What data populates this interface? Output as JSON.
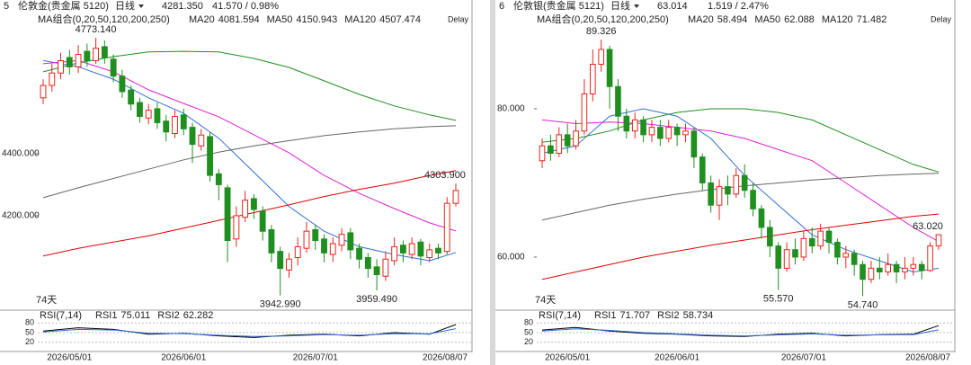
{
  "chart_data": [
    {
      "type": "candlestick",
      "index_label": "5",
      "title": "伦敦金(贵金属 5120)",
      "period": "日线",
      "price": "4281.350",
      "change": "41.570 / 0.98%",
      "ma_group": "MA组合(0,20,50,120,200,250)",
      "delay": "Delay",
      "days": "74天",
      "categories": [
        null,
        null,
        null,
        "2026/05/01",
        null,
        null,
        null,
        null,
        null,
        null,
        null,
        null,
        null,
        null,
        null,
        null,
        "2026/06/01",
        null,
        null,
        null,
        null,
        null,
        null,
        null,
        null,
        null,
        null,
        null,
        null,
        null,
        null,
        "2026/07/01",
        null,
        null,
        null,
        null,
        null,
        null,
        null,
        null,
        null,
        null,
        null,
        null,
        null,
        null,
        null,
        "2026/08/07"
      ],
      "ylim": [
        3910,
        4852
      ],
      "yticks": [
        {
          "value": 4200,
          "label": "4200.000"
        },
        {
          "value": 4400,
          "label": "4400.000"
        }
      ],
      "up_color": "#e8251c",
      "down_color": "#1f8f1f",
      "open": [
        4580,
        4620,
        4660,
        4710,
        4680,
        4730,
        4700,
        4745,
        4705,
        4650,
        4605,
        4565,
        4515,
        4545,
        4505,
        4465,
        4525,
        4485,
        4425,
        4455,
        4335,
        4290,
        4125,
        4195,
        4255,
        4215,
        4155,
        4085,
        4025,
        4065,
        4095,
        4155,
        4125,
        4075,
        4105,
        4145,
        4095,
        4065,
        4035,
        4005,
        4055,
        4105,
        4075,
        4115,
        4065,
        4095,
        4085,
        4240
      ],
      "high": [
        4640,
        4690,
        4725,
        4735,
        4750,
        4755,
        4773.14,
        4765,
        4720,
        4670,
        4620,
        4580,
        4560,
        4565,
        4525,
        4540,
        4545,
        4500,
        4480,
        4470,
        4350,
        4300,
        4230,
        4280,
        4270,
        4230,
        4170,
        4100,
        4080,
        4130,
        4180,
        4170,
        4140,
        4130,
        4160,
        4160,
        4110,
        4080,
        4060,
        4085,
        4130,
        4120,
        4130,
        4125,
        4110,
        4110,
        4260,
        4303.9
      ],
      "low": [
        4560,
        4600,
        4640,
        4655,
        4660,
        4680,
        4690,
        4690,
        4630,
        4580,
        4540,
        4500,
        4495,
        4480,
        4440,
        4450,
        4460,
        4370,
        4410,
        4310,
        4250,
        4050,
        4100,
        4180,
        4190,
        4120,
        4050,
        3942.99,
        4000,
        4040,
        4080,
        4090,
        4050,
        4050,
        4085,
        4060,
        4030,
        4000,
        3959.49,
        3990,
        4040,
        4050,
        4060,
        4040,
        4050,
        4060,
        4075,
        4230
      ],
      "close": [
        4620,
        4660,
        4700,
        4680,
        4720,
        4700,
        4740,
        4710,
        4650,
        4600,
        4560,
        4520,
        4540,
        4500,
        4470,
        4520,
        4480,
        4430,
        4460,
        4330,
        4300,
        4120,
        4200,
        4250,
        4220,
        4150,
        4080,
        4030,
        4060,
        4100,
        4150,
        4120,
        4080,
        4110,
        4140,
        4090,
        4060,
        4030,
        4010,
        4060,
        4100,
        4080,
        4110,
        4070,
        4090,
        4080,
        4240,
        4281.35
      ],
      "annotations": [
        {
          "label": "4773.140",
          "value": 4773.14,
          "color": "#e8251c"
        },
        {
          "label": "3942.990",
          "value": 3942.99,
          "color": "#1f6f1f"
        },
        {
          "label": "3959.490",
          "value": 3959.49,
          "color": "#1f6f1f"
        },
        {
          "label": "4303.900",
          "value": 4303.9,
          "color": "#e8251c"
        }
      ],
      "series": [
        {
          "name": "MA20",
          "value_label": "4081.594",
          "color": "#2f6fd6",
          "x": [
            0,
            4,
            8,
            12,
            16,
            20,
            24,
            28,
            32,
            36,
            40,
            44,
            47
          ],
          "values": [
            4700,
            4680,
            4640,
            4580,
            4530,
            4450,
            4340,
            4230,
            4150,
            4100,
            4075,
            4055,
            4081.594
          ]
        },
        {
          "name": "MA50",
          "value_label": "4150.943",
          "color": "#e020d0",
          "x": [
            0,
            4,
            8,
            12,
            16,
            20,
            24,
            28,
            32,
            36,
            40,
            44,
            47
          ],
          "values": [
            4690,
            4700,
            4664,
            4606,
            4562,
            4519,
            4461,
            4403,
            4330,
            4272,
            4223,
            4177,
            4150.943
          ]
        },
        {
          "name": "MA120",
          "value_label": "4507.474",
          "color": "#1f8f1f",
          "x": [
            0,
            4,
            8,
            12,
            16,
            20,
            24,
            28,
            32,
            36,
            40,
            44,
            47
          ],
          "values": [
            4664,
            4693,
            4713,
            4728,
            4730,
            4728,
            4707,
            4678,
            4635,
            4591,
            4554,
            4525,
            4507.474
          ]
        },
        {
          "color": "#e00000",
          "x": [
            0,
            4,
            8,
            12,
            16,
            20,
            24,
            28,
            32,
            36,
            40,
            44,
            47
          ],
          "values": [
            4070,
            4095,
            4115,
            4135,
            4160,
            4185,
            4210,
            4235,
            4262,
            4285,
            4305,
            4330,
            4345
          ]
        },
        {
          "color": "#666666",
          "x": [
            0,
            4,
            8,
            12,
            16,
            20,
            24,
            28,
            32,
            36,
            40,
            44,
            47
          ],
          "values": [
            4258,
            4290,
            4320,
            4350,
            4380,
            4405,
            4425,
            4442,
            4458,
            4470,
            4480,
            4487,
            4490
          ]
        }
      ],
      "rsi": {
        "title": "RSI(7,14)",
        "ylim": [
          0,
          100
        ],
        "yticks": [
          80,
          50,
          20
        ],
        "series": [
          {
            "name": "RSI1",
            "value_label": "75.011",
            "color": "#000000",
            "x": [
              0,
              4,
              8,
              12,
              16,
              20,
              24,
              28,
              32,
              36,
              40,
              44,
              47
            ],
            "values": [
              55,
              65,
              60,
              45,
              48,
              40,
              35,
              42,
              45,
              40,
              50,
              45,
              75.011
            ]
          },
          {
            "name": "RSI2",
            "value_label": "62.282",
            "color": "#2f6fd6",
            "x": [
              0,
              4,
              8,
              12,
              16,
              20,
              24,
              28,
              32,
              36,
              40,
              44,
              47
            ],
            "values": [
              52,
              60,
              58,
              48,
              47,
              42,
              38,
              40,
              44,
              42,
              47,
              46,
              62.282
            ]
          }
        ]
      }
    },
    {
      "type": "candlestick",
      "index_label": "6",
      "title": "伦敦银(贵金属 5121)",
      "period": "日线",
      "price": "63.014",
      "change": "1.519 / 2.47%",
      "ma_group": "MA组合(0,20,50,120,200,250)",
      "delay": "Delay",
      "days": "74天",
      "categories": [
        null,
        null,
        null,
        "2026/05/01",
        null,
        null,
        null,
        null,
        null,
        null,
        null,
        null,
        null,
        null,
        null,
        null,
        "2026/06/01",
        null,
        null,
        null,
        null,
        null,
        null,
        null,
        null,
        null,
        null,
        null,
        null,
        null,
        null,
        "2026/07/01",
        null,
        null,
        null,
        null,
        null,
        null,
        null,
        null,
        null,
        null,
        null,
        null,
        null,
        null,
        null,
        "2026/08/07"
      ],
      "ylim": [
        53.45,
        92.85
      ],
      "yticks": [
        {
          "value": 60,
          "label": "60.000"
        },
        {
          "value": 80,
          "label": "80.000"
        }
      ],
      "up_color": "#e8251c",
      "down_color": "#1f8f1f",
      "open": [
        73,
        75,
        74,
        76.5,
        75,
        77,
        82,
        86,
        88,
        83,
        79,
        77,
        78.5,
        76.5,
        77.5,
        76,
        77.5,
        76.5,
        77,
        73.5,
        70,
        67,
        69.5,
        68.5,
        71,
        69,
        66.5,
        64,
        61.5,
        58.5,
        61,
        60,
        62.5,
        61.5,
        63.5,
        62,
        60,
        60.5,
        59,
        57,
        58.5,
        58,
        59,
        58,
        58.5,
        59,
        58.2,
        61.5
      ],
      "high": [
        76,
        76.5,
        77.5,
        78,
        78.5,
        84,
        88,
        89.326,
        88.5,
        84,
        80,
        79.5,
        79,
        78.5,
        78.5,
        78.5,
        78,
        78,
        77.5,
        74,
        71,
        70.5,
        71,
        72,
        72.5,
        70,
        67,
        65,
        62,
        62,
        62.5,
        63.5,
        64,
        64.5,
        64,
        62.5,
        61.5,
        61,
        59.5,
        59.5,
        60,
        60.5,
        59.5,
        60,
        60,
        59.5,
        62,
        63.02
      ],
      "low": [
        72,
        73,
        73.5,
        74,
        74.5,
        76.5,
        81,
        85,
        80,
        77,
        76,
        76,
        75.5,
        75.5,
        75,
        75.5,
        75,
        75.5,
        72,
        69,
        66,
        65,
        67,
        68,
        68,
        65.5,
        62.5,
        60,
        55.57,
        58,
        59,
        59.5,
        60.5,
        61,
        60.5,
        59,
        58.5,
        57.5,
        54.74,
        56.5,
        57,
        57.5,
        56.5,
        57,
        57.5,
        57,
        58,
        61
      ],
      "close": [
        75,
        74,
        76.5,
        75,
        77,
        82,
        86,
        88,
        83,
        79,
        77,
        78.5,
        76.5,
        77.5,
        76,
        77.5,
        76.5,
        77,
        73.5,
        70,
        67,
        69.5,
        68.5,
        71,
        69,
        66.5,
        64,
        61.5,
        58.5,
        61,
        60,
        62.5,
        61.5,
        63.5,
        62,
        60,
        60.5,
        59,
        57,
        58.5,
        58,
        59,
        58,
        58.5,
        59,
        58.2,
        61.5,
        63.014
      ],
      "annotations": [
        {
          "label": "89.326",
          "value": 89.326,
          "color": "#e8251c"
        },
        {
          "label": "55.570",
          "value": 55.57,
          "color": "#1f6f1f"
        },
        {
          "label": "54.740",
          "value": 54.74,
          "color": "#1f6f1f"
        },
        {
          "label": "63.020",
          "value": 63.02,
          "color": "#e8251c"
        }
      ],
      "series": [
        {
          "name": "MA20",
          "value_label": "58.494",
          "color": "#2f6fd6",
          "x": [
            0,
            4,
            8,
            12,
            16,
            20,
            24,
            28,
            32,
            36,
            40,
            44,
            47
          ],
          "values": [
            74,
            75,
            79,
            80,
            79,
            76,
            71,
            67,
            63,
            61,
            59.5,
            58,
            58.494
          ]
        },
        {
          "name": "MA50",
          "value_label": "62.088",
          "color": "#e020d0",
          "x": [
            0,
            4,
            8,
            12,
            16,
            20,
            24,
            28,
            32,
            36,
            40,
            44,
            47
          ],
          "values": [
            78.5,
            78,
            78.2,
            78,
            77.5,
            77,
            76,
            74.5,
            73,
            70,
            67,
            64,
            62.088
          ]
        },
        {
          "name": "MA120",
          "value_label": "71.482",
          "color": "#1f8f1f",
          "x": [
            0,
            4,
            8,
            12,
            16,
            20,
            24,
            28,
            32,
            36,
            40,
            44,
            47
          ],
          "values": [
            75.5,
            76,
            77,
            78.5,
            79.5,
            80,
            80,
            79.5,
            78.5,
            76.5,
            74.5,
            72.5,
            71.482
          ]
        },
        {
          "color": "#e00000",
          "x": [
            0,
            4,
            8,
            12,
            16,
            20,
            24,
            28,
            32,
            36,
            40,
            44,
            47
          ],
          "values": [
            57,
            58,
            59,
            60,
            60.8,
            61.6,
            62.3,
            63,
            63.7,
            64.3,
            64.9,
            65.5,
            65.8
          ]
        },
        {
          "color": "#666666",
          "x": [
            0,
            4,
            8,
            12,
            16,
            20,
            24,
            28,
            32,
            36,
            40,
            44,
            47
          ],
          "values": [
            65,
            66,
            67,
            67.8,
            68.5,
            69.1,
            69.6,
            70,
            70.4,
            70.7,
            71,
            71.2,
            71.3
          ]
        }
      ],
      "rsi": {
        "title": "RSI(7,14)",
        "ylim": [
          0,
          100
        ],
        "yticks": [
          80,
          50,
          20
        ],
        "series": [
          {
            "name": "RSI1",
            "value_label": "71.707",
            "color": "#000000",
            "x": [
              0,
              4,
              8,
              12,
              16,
              20,
              24,
              28,
              32,
              36,
              40,
              44,
              47
            ],
            "values": [
              58,
              66,
              55,
              48,
              45,
              40,
              38,
              45,
              48,
              40,
              44,
              45,
              71.707
            ]
          },
          {
            "name": "RSI2",
            "value_label": "58.734",
            "color": "#2f6fd6",
            "x": [
              0,
              4,
              8,
              12,
              16,
              20,
              24,
              28,
              32,
              36,
              40,
              44,
              47
            ],
            "values": [
              55,
              62,
              57,
              50,
              46,
              42,
              40,
              43,
              46,
              42,
              43,
              44,
              58.734
            ]
          }
        ]
      }
    }
  ]
}
